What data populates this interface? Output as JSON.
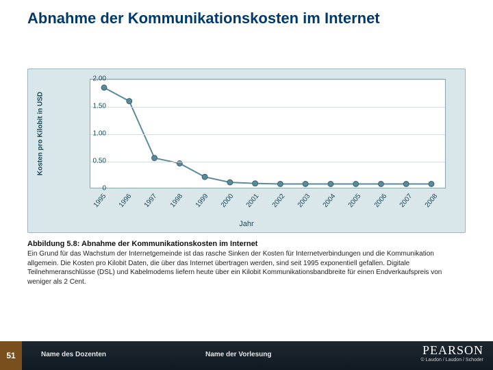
{
  "title": "Abnahme der Kommunikationskosten im Internet",
  "chart": {
    "type": "line",
    "background_color": "#d9e6ea",
    "plot_background": "#ffffff",
    "border_color": "#8aa6b0",
    "grid_color": "#d4dee2",
    "ylabel": "Kosten pro Kilobit in USD",
    "xlabel": "Jahr",
    "label_fontsize": 10,
    "tick_fontsize": 10,
    "ylim": [
      0,
      2.0
    ],
    "yticks": [
      0,
      0.5,
      1.0,
      1.5,
      2.0
    ],
    "ytick_labels": [
      "0",
      "0.50",
      "1.00",
      "1.50",
      "2.00"
    ],
    "categories": [
      "1995",
      "1996",
      "1997",
      "1998",
      "1999",
      "2000",
      "2001",
      "2002",
      "2003",
      "2004",
      "2005",
      "2006",
      "2007",
      "2008"
    ],
    "values": [
      1.85,
      1.6,
      0.55,
      0.45,
      0.2,
      0.1,
      0.08,
      0.07,
      0.07,
      0.07,
      0.07,
      0.07,
      0.07,
      0.07
    ],
    "line_color": "#5a8a9a",
    "line_width": 2,
    "marker_color": "#5a8a9a",
    "marker_border": "#34626f",
    "marker_radius": 4,
    "tick_color": "#1a4a5a"
  },
  "caption": {
    "title": "Abbildung 5.8: Abnahme der Kommunikationskosten im Internet",
    "body": "Ein Grund für das Wachstum der Internetgemeinde ist das rasche Sinken der Kosten für Internetverbindungen und die Kommunikation allgemein. Die Kosten pro Kilobit Daten, die über das Internet übertragen werden, sind seit 1995 exponentiell gefallen. Digitale Teilnehmeranschlüsse (DSL) und Kabelmodems liefern heute über ein Kilobit Kommunikationsbandbreite für einen Endverkaufspreis von weniger als 2 Cent."
  },
  "footer": {
    "page": "51",
    "left": "Name des Dozenten",
    "center": "Name der Vorlesung",
    "brand": "PEARSON",
    "copyright": "© Laudon / Laudon / Schoder"
  }
}
